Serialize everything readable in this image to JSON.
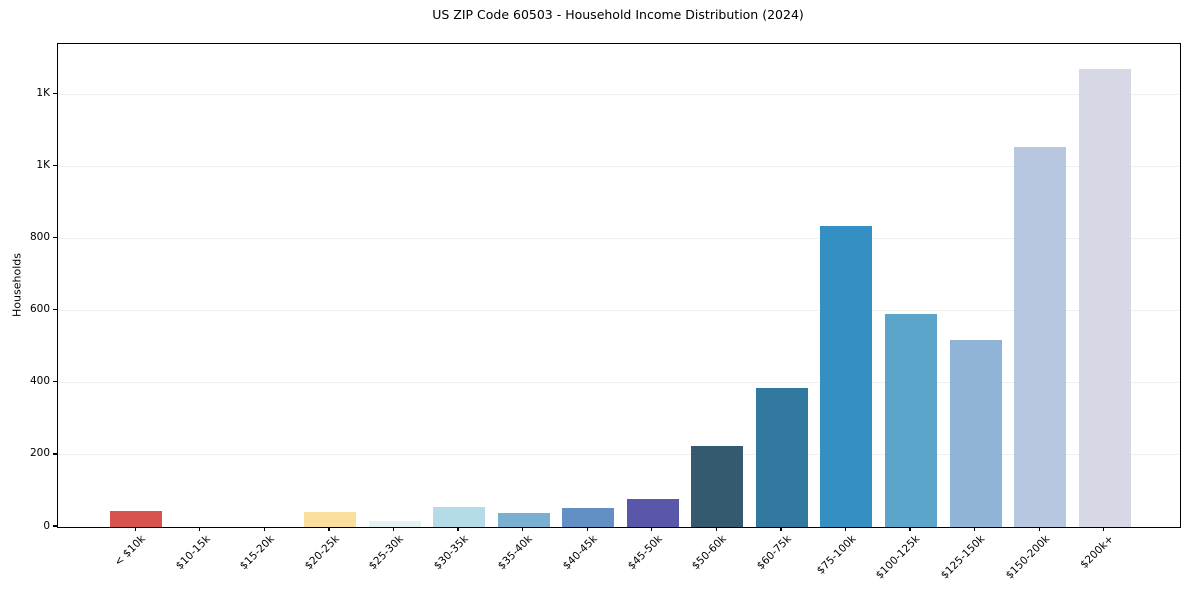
{
  "figure": {
    "title": "US ZIP Code 60503 - Household Income Distribution (2024)",
    "background_color": "#ffffff",
    "spine_color": "#000000",
    "grid_color": "#efefef"
  },
  "chart_data": {
    "type": "bar",
    "title": "US ZIP Code 60503 - Household Income Distribution (2024)",
    "xlabel": "",
    "ylabel": "Households",
    "categories": [
      "< $10k",
      "$10-15k",
      "$15-20k",
      "$20-25k",
      "$25-30k",
      "$30-35k",
      "$35-40k",
      "$40-45k",
      "$45-50k",
      "$50-60k",
      "$60-75k",
      "$75-100k",
      "$100-125k",
      "$125-150k",
      "$150-200k",
      "$200k+"
    ],
    "values": [
      45,
      0,
      0,
      43,
      18,
      55,
      40,
      52,
      78,
      225,
      385,
      835,
      590,
      520,
      1055,
      1270
    ],
    "bar_colors": [
      "#d9534e",
      "#d9534e",
      "#f5e0a9",
      "#fbdf9e",
      "#e4f3f1",
      "#b5dbe9",
      "#79b0d2",
      "#6290c4",
      "#5957a9",
      "#35596e",
      "#31799e",
      "#348fc3",
      "#5ba4ca",
      "#8fb4d8",
      "#b8c7e0",
      "#d7d8e6"
    ],
    "ylim": [
      0,
      1340
    ],
    "yticks": [
      {
        "value": 0,
        "label": "0"
      },
      {
        "value": 200,
        "label": "200"
      },
      {
        "value": 400,
        "label": "400"
      },
      {
        "value": 600,
        "label": "600"
      },
      {
        "value": 800,
        "label": "800"
      },
      {
        "value": 1000,
        "label": "1K"
      },
      {
        "value": 1200,
        "label": "1K"
      }
    ],
    "grid": "horizontal",
    "legend_position": "none"
  }
}
